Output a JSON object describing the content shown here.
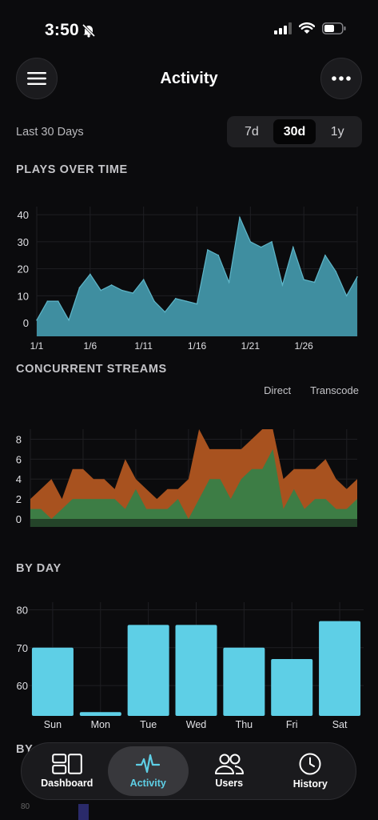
{
  "status": {
    "time": "3:50"
  },
  "header": {
    "title": "Activity",
    "menu_icon": "hamburger-icon",
    "more_icon": "ellipsis-icon"
  },
  "range": {
    "label": "Last 30 Days",
    "options": [
      "7d",
      "30d",
      "1y"
    ],
    "selected": "30d"
  },
  "colors": {
    "accent": "#5ecfe6",
    "plays_fill": "#3f8ea0",
    "direct": "#3d7d45",
    "transcode": "#a8521f"
  },
  "sections": {
    "plays": "PLAYS OVER TIME",
    "streams": "CONCURRENT STREAMS",
    "by_day": "BY DAY",
    "by_next": "BY"
  },
  "legend": [
    "Direct",
    "Transcode"
  ],
  "chart_data": [
    {
      "type": "area",
      "title": "PLAYS OVER TIME",
      "x_ticks": [
        "1/1",
        "1/6",
        "1/11",
        "1/16",
        "1/21",
        "1/26"
      ],
      "y_ticks": [
        "0",
        "10",
        "20",
        "30",
        "40"
      ],
      "ylim": [
        -5,
        43
      ],
      "x": [
        "1/1",
        "1/2",
        "1/3",
        "1/4",
        "1/5",
        "1/6",
        "1/7",
        "1/8",
        "1/9",
        "1/10",
        "1/11",
        "1/12",
        "1/13",
        "1/14",
        "1/15",
        "1/16",
        "1/17",
        "1/18",
        "1/19",
        "1/20",
        "1/21",
        "1/22",
        "1/23",
        "1/24",
        "1/25",
        "1/26",
        "1/27",
        "1/28",
        "1/29",
        "1/30",
        "1/31"
      ],
      "values": [
        1,
        8,
        8,
        1,
        13,
        18,
        12,
        14,
        12,
        11,
        16,
        8,
        4,
        9,
        8,
        7,
        27,
        25,
        15,
        39,
        30,
        28,
        30,
        14,
        28,
        16,
        15,
        25,
        19,
        10,
        17
      ],
      "grid": true
    },
    {
      "type": "area",
      "title": "CONCURRENT STREAMS",
      "y_ticks": [
        "0",
        "2",
        "4",
        "6",
        "8"
      ],
      "ylim": [
        -0.8,
        9
      ],
      "series": [
        {
          "name": "Direct",
          "values": [
            1,
            1,
            0,
            1,
            2,
            2,
            2,
            2,
            2,
            1,
            3,
            1,
            1,
            1,
            2,
            0,
            2,
            4,
            4,
            2,
            4,
            5,
            5,
            7,
            1,
            3,
            1,
            2,
            2,
            1,
            1,
            2
          ]
        },
        {
          "name": "Transcode",
          "values": [
            2,
            3,
            4,
            2,
            5,
            5,
            4,
            4,
            3,
            6,
            4,
            3,
            2,
            3,
            3,
            4,
            9,
            7,
            7,
            7,
            7,
            8,
            9,
            9,
            4,
            5,
            5,
            5,
            6,
            4,
            3,
            4
          ]
        }
      ],
      "grid": true
    },
    {
      "type": "bar",
      "title": "BY DAY",
      "categories": [
        "Sun",
        "Mon",
        "Tue",
        "Wed",
        "Thu",
        "Fri",
        "Sat"
      ],
      "values": [
        70,
        53,
        76,
        76,
        70,
        67,
        77
      ],
      "y_ticks": [
        "60",
        "70",
        "80"
      ],
      "ylim": [
        52,
        82
      ],
      "grid": true
    }
  ],
  "tabs": [
    {
      "label": "Dashboard",
      "icon": "dashboard-icon",
      "active": false
    },
    {
      "label": "Activity",
      "icon": "activity-icon",
      "active": true
    },
    {
      "label": "Users",
      "icon": "users-icon",
      "active": false
    },
    {
      "label": "History",
      "icon": "clock-icon",
      "active": false
    }
  ],
  "peek_chart": {
    "y_tick": "80"
  }
}
